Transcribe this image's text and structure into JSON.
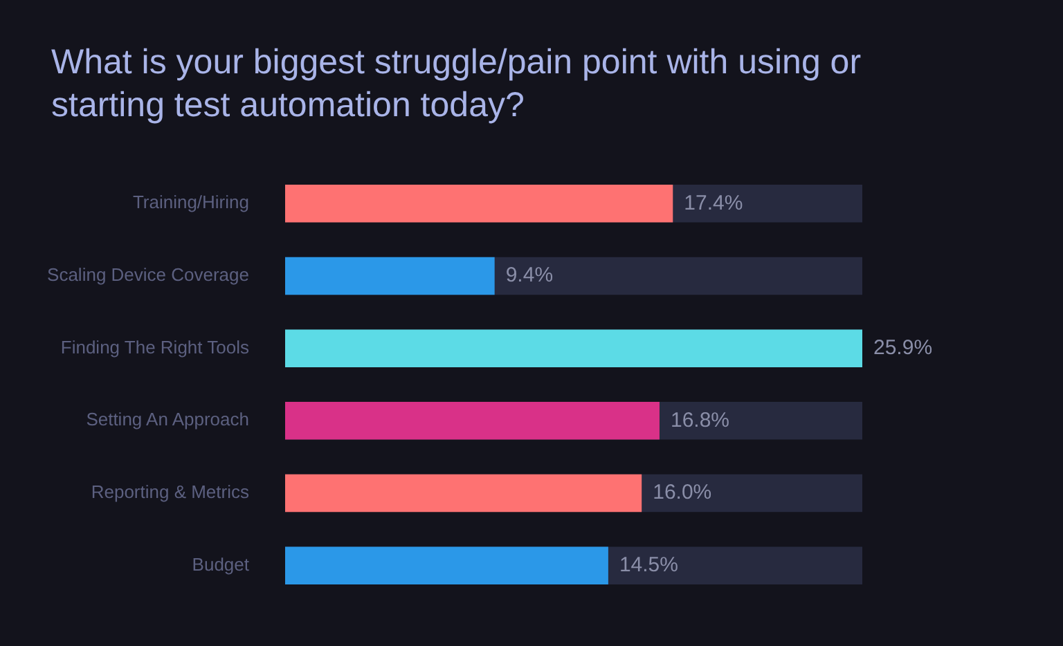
{
  "chart_data": {
    "type": "bar",
    "orientation": "horizontal",
    "title": "What is your biggest struggle/pain point with using or starting test automation today?",
    "categories": [
      "Training/Hiring",
      "Scaling Device Coverage",
      "Finding The Right Tools",
      "Setting An Approach",
      "Reporting & Metrics",
      "Budget"
    ],
    "values": [
      17.4,
      9.4,
      25.9,
      16.8,
      16.0,
      14.5
    ],
    "colors": [
      "#fe7272",
      "#2b98e8",
      "#5cdbe6",
      "#d93188",
      "#fe7272",
      "#2b98e8"
    ],
    "value_labels": [
      "17.4%",
      "9.4%",
      "25.9%",
      "16.8%",
      "16.0%",
      "14.5%"
    ],
    "legend": false
  }
}
